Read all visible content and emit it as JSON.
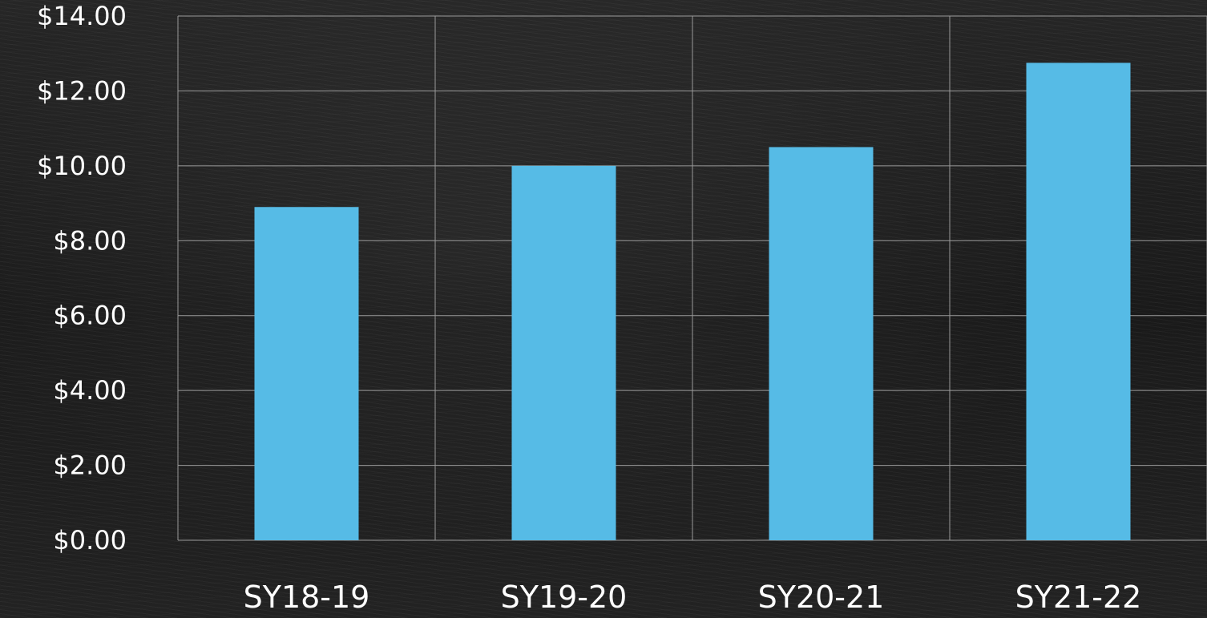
{
  "chart_data": {
    "type": "bar",
    "categories": [
      "SY18-19",
      "SY19-20",
      "SY20-21",
      "SY21-22"
    ],
    "values": [
      8.9,
      10.0,
      10.5,
      12.75
    ],
    "y_ticks": [
      "$0.00",
      "$2.00",
      "$4.00",
      "$6.00",
      "$8.00",
      "$10.00",
      "$12.00",
      "$14.00"
    ],
    "ylim": [
      0,
      14
    ],
    "title": "",
    "xlabel": "",
    "ylabel": "",
    "grid": true,
    "legend": "none",
    "colors": {
      "bar": "#56bbe6",
      "grid": "#9a9a9a",
      "text": "#ffffff",
      "background": "#1f1f1f"
    }
  }
}
